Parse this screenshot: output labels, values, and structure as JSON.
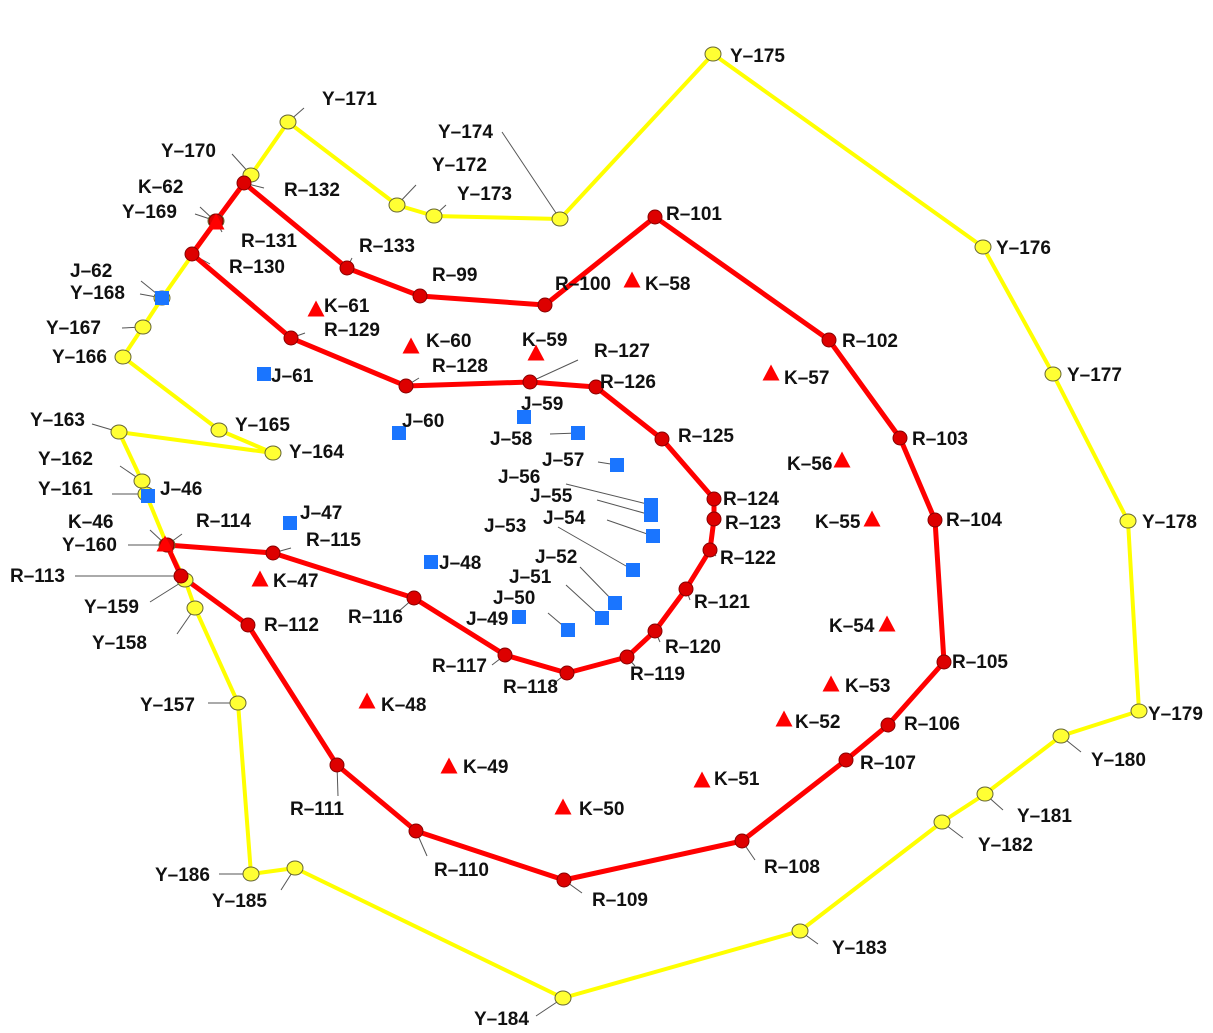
{
  "colors": {
    "yellow_route": "#ffff00",
    "yellow_node": "#ffff33",
    "red_route": "#ff0000",
    "red_node": "#dd0000",
    "k_marker": "#ff0000",
    "j_marker": "#1a75ff",
    "leader": "#555555",
    "label": "#111111"
  },
  "yellow_nodes": [
    {
      "id": "Y-157",
      "label": "Y–157"
    },
    {
      "id": "Y-158",
      "label": "Y–158"
    },
    {
      "id": "Y-159",
      "label": "Y–159"
    },
    {
      "id": "Y-160",
      "label": "Y–160"
    },
    {
      "id": "Y-161",
      "label": "Y–161"
    },
    {
      "id": "Y-162",
      "label": "Y–162"
    },
    {
      "id": "Y-163",
      "label": "Y–163"
    },
    {
      "id": "Y-164",
      "label": "Y–164"
    },
    {
      "id": "Y-165",
      "label": "Y–165"
    },
    {
      "id": "Y-166",
      "label": "Y–166"
    },
    {
      "id": "Y-167",
      "label": "Y–167"
    },
    {
      "id": "Y-168",
      "label": "Y–168"
    },
    {
      "id": "Y-169",
      "label": "Y–169"
    },
    {
      "id": "Y-170",
      "label": "Y–170"
    },
    {
      "id": "Y-171",
      "label": "Y–171"
    },
    {
      "id": "Y-172",
      "label": "Y–172"
    },
    {
      "id": "Y-173",
      "label": "Y–173"
    },
    {
      "id": "Y-174",
      "label": "Y–174"
    },
    {
      "id": "Y-175",
      "label": "Y–175"
    },
    {
      "id": "Y-176",
      "label": "Y–176"
    },
    {
      "id": "Y-177",
      "label": "Y–177"
    },
    {
      "id": "Y-178",
      "label": "Y–178"
    },
    {
      "id": "Y-179",
      "label": "Y–179"
    },
    {
      "id": "Y-180",
      "label": "Y–180"
    },
    {
      "id": "Y-181",
      "label": "Y–181"
    },
    {
      "id": "Y-182",
      "label": "Y–182"
    },
    {
      "id": "Y-183",
      "label": "Y–183"
    },
    {
      "id": "Y-184",
      "label": "Y–184"
    },
    {
      "id": "Y-185",
      "label": "Y–185"
    },
    {
      "id": "Y-186",
      "label": "Y–186"
    }
  ],
  "yellow_edges": [
    [
      "Y-168",
      "Y-169"
    ],
    [
      "Y-169",
      "Y-170"
    ],
    [
      "Y-170",
      "Y-171"
    ],
    [
      "Y-171",
      "Y-172"
    ],
    [
      "Y-172",
      "Y-173"
    ],
    [
      "Y-173",
      "Y-174"
    ],
    [
      "Y-174",
      "Y-175"
    ],
    [
      "Y-175",
      "Y-176"
    ],
    [
      "Y-176",
      "Y-177"
    ],
    [
      "Y-177",
      "Y-178"
    ],
    [
      "Y-178",
      "Y-179"
    ],
    [
      "Y-179",
      "Y-180"
    ],
    [
      "Y-180",
      "Y-181"
    ],
    [
      "Y-181",
      "Y-182"
    ],
    [
      "Y-182",
      "Y-183"
    ],
    [
      "Y-183",
      "Y-184"
    ],
    [
      "Y-184",
      "Y-185"
    ],
    [
      "Y-185",
      "Y-186"
    ],
    [
      "Y-186",
      "Y-157"
    ],
    [
      "Y-157",
      "Y-158"
    ],
    [
      "Y-158",
      "Y-159"
    ],
    [
      "Y-159",
      "Y-160"
    ],
    [
      "Y-160",
      "Y-161"
    ],
    [
      "Y-161",
      "Y-162"
    ],
    [
      "Y-162",
      "Y-163"
    ],
    [
      "Y-163",
      "Y-164"
    ],
    [
      "Y-164",
      "Y-165"
    ],
    [
      "Y-165",
      "Y-166"
    ],
    [
      "Y-166",
      "Y-167"
    ],
    [
      "Y-167",
      "Y-168"
    ]
  ],
  "red_nodes": [
    {
      "id": "R-99",
      "label": "R–99"
    },
    {
      "id": "R-100",
      "label": "R–100"
    },
    {
      "id": "R-101",
      "label": "R–101"
    },
    {
      "id": "R-102",
      "label": "R–102"
    },
    {
      "id": "R-103",
      "label": "R–103"
    },
    {
      "id": "R-104",
      "label": "R–104"
    },
    {
      "id": "R-105",
      "label": "R–105"
    },
    {
      "id": "R-106",
      "label": "R–106"
    },
    {
      "id": "R-107",
      "label": "R–107"
    },
    {
      "id": "R-108",
      "label": "R–108"
    },
    {
      "id": "R-109",
      "label": "R–109"
    },
    {
      "id": "R-110",
      "label": "R–110"
    },
    {
      "id": "R-111",
      "label": "R–111"
    },
    {
      "id": "R-112",
      "label": "R–112"
    },
    {
      "id": "R-113",
      "label": "R–113"
    },
    {
      "id": "R-114",
      "label": "R–114"
    },
    {
      "id": "R-115",
      "label": "R–115"
    },
    {
      "id": "R-116",
      "label": "R–116"
    },
    {
      "id": "R-117",
      "label": "R–117"
    },
    {
      "id": "R-118",
      "label": "R–118"
    },
    {
      "id": "R-119",
      "label": "R–119"
    },
    {
      "id": "R-120",
      "label": "R–120"
    },
    {
      "id": "R-121",
      "label": "R–121"
    },
    {
      "id": "R-122",
      "label": "R–122"
    },
    {
      "id": "R-123",
      "label": "R–123"
    },
    {
      "id": "R-124",
      "label": "R–124"
    },
    {
      "id": "R-125",
      "label": "R–125"
    },
    {
      "id": "R-126",
      "label": "R–126"
    },
    {
      "id": "R-127",
      "label": "R–127"
    },
    {
      "id": "R-128",
      "label": "R–128"
    },
    {
      "id": "R-129",
      "label": "R–129"
    },
    {
      "id": "R-130",
      "label": "R–130"
    },
    {
      "id": "R-131",
      "label": "R–131"
    },
    {
      "id": "R-132",
      "label": "R–132"
    },
    {
      "id": "R-133",
      "label": "R–133"
    }
  ],
  "red_edges": [
    [
      "R-132",
      "R-133"
    ],
    [
      "R-133",
      "R-99"
    ],
    [
      "R-99",
      "R-100"
    ],
    [
      "R-100",
      "R-101"
    ],
    [
      "R-101",
      "R-102"
    ],
    [
      "R-102",
      "R-103"
    ],
    [
      "R-103",
      "R-104"
    ],
    [
      "R-104",
      "R-105"
    ],
    [
      "R-105",
      "R-106"
    ],
    [
      "R-106",
      "R-107"
    ],
    [
      "R-107",
      "R-108"
    ],
    [
      "R-108",
      "R-109"
    ],
    [
      "R-109",
      "R-110"
    ],
    [
      "R-110",
      "R-111"
    ],
    [
      "R-111",
      "R-112"
    ],
    [
      "R-112",
      "R-113"
    ],
    [
      "R-113",
      "R-114"
    ],
    [
      "R-114",
      "R-115"
    ],
    [
      "R-115",
      "R-116"
    ],
    [
      "R-116",
      "R-117"
    ],
    [
      "R-117",
      "R-118"
    ],
    [
      "R-118",
      "R-119"
    ],
    [
      "R-119",
      "R-120"
    ],
    [
      "R-120",
      "R-121"
    ],
    [
      "R-121",
      "R-122"
    ],
    [
      "R-122",
      "R-123"
    ],
    [
      "R-123",
      "R-124"
    ],
    [
      "R-124",
      "R-125"
    ],
    [
      "R-125",
      "R-126"
    ],
    [
      "R-126",
      "R-127"
    ],
    [
      "R-127",
      "R-128"
    ],
    [
      "R-128",
      "R-129"
    ],
    [
      "R-129",
      "R-130"
    ],
    [
      "R-130",
      "R-131"
    ],
    [
      "R-131",
      "R-132"
    ]
  ],
  "k_markers": [
    {
      "id": "K-46",
      "label": "K–46"
    },
    {
      "id": "K-47",
      "label": "K–47"
    },
    {
      "id": "K-48",
      "label": "K–48"
    },
    {
      "id": "K-49",
      "label": "K–49"
    },
    {
      "id": "K-50",
      "label": "K–50"
    },
    {
      "id": "K-51",
      "label": "K–51"
    },
    {
      "id": "K-52",
      "label": "K–52"
    },
    {
      "id": "K-53",
      "label": "K–53"
    },
    {
      "id": "K-54",
      "label": "K–54"
    },
    {
      "id": "K-55",
      "label": "K–55"
    },
    {
      "id": "K-56",
      "label": "K–56"
    },
    {
      "id": "K-57",
      "label": "K–57"
    },
    {
      "id": "K-58",
      "label": "K–58"
    },
    {
      "id": "K-59",
      "label": "K–59"
    },
    {
      "id": "K-60",
      "label": "K–60"
    },
    {
      "id": "K-61",
      "label": "K–61"
    },
    {
      "id": "K-62",
      "label": "K–62"
    }
  ],
  "j_markers": [
    {
      "id": "J-46",
      "label": "J–46"
    },
    {
      "id": "J-47",
      "label": "J–47"
    },
    {
      "id": "J-48",
      "label": "J–48"
    },
    {
      "id": "J-49",
      "label": "J–49"
    },
    {
      "id": "J-50",
      "label": "J–50"
    },
    {
      "id": "J-51",
      "label": "J–51"
    },
    {
      "id": "J-52",
      "label": "J–52"
    },
    {
      "id": "J-53",
      "label": "J–53"
    },
    {
      "id": "J-54",
      "label": "J–54"
    },
    {
      "id": "J-55",
      "label": "J–55"
    },
    {
      "id": "J-56",
      "label": "J–56"
    },
    {
      "id": "J-57",
      "label": "J–57"
    },
    {
      "id": "J-58",
      "label": "J–58"
    },
    {
      "id": "J-59",
      "label": "J–59"
    },
    {
      "id": "J-60",
      "label": "J–60"
    },
    {
      "id": "J-61",
      "label": "J–61"
    },
    {
      "id": "J-62",
      "label": "J–62"
    }
  ]
}
